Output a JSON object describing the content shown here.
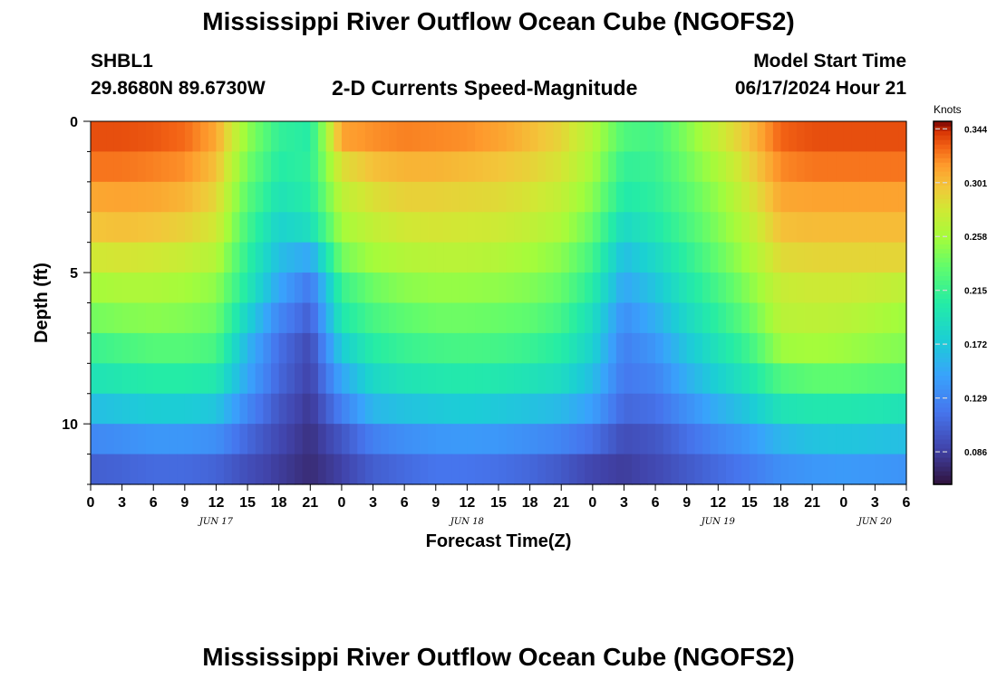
{
  "header": {
    "title": "Mississippi River Outflow Ocean Cube (NGOFS2)",
    "station_id": "SHBL1",
    "station_coords": "29.8680N  89.6730W",
    "subtitle": "2-D Currents Speed-Magnitude",
    "model_start_label": "Model Start Time",
    "model_start_value": "06/17/2024 Hour 21"
  },
  "footer": {
    "title": "Mississippi River Outflow Ocean Cube (NGOFS2)"
  },
  "chart_data": {
    "type": "heatmap",
    "ylabel": "Depth (ft)",
    "xlabel": "Forecast Time(Z)",
    "colorbar_label": "Knots",
    "colorbar_ticks": [
      0.086,
      0.129,
      0.172,
      0.215,
      0.258,
      0.301,
      0.344
    ],
    "value_range": [
      0.06,
      0.35
    ],
    "y_range": [
      0,
      12
    ],
    "y_ticks": [
      0,
      5,
      10
    ],
    "x_range_hours": [
      0,
      78
    ],
    "x_tick_labels": [
      "0",
      "3",
      "6",
      "9",
      "12",
      "15",
      "18",
      "21",
      "0",
      "3",
      "6",
      "9",
      "12",
      "15",
      "18",
      "21",
      "0",
      "3",
      "6",
      "9",
      "12",
      "15",
      "18",
      "21",
      "0",
      "3",
      "6"
    ],
    "date_labels": [
      {
        "text": "JUN 17",
        "hour": 12
      },
      {
        "text": "JUN 18",
        "hour": 36
      },
      {
        "text": "JUN 19",
        "hour": 60
      },
      {
        "text": "JUN 20",
        "hour": 75
      }
    ],
    "depth_levels_ft": [
      0.5,
      1.5,
      2.5,
      3.5,
      4.5,
      5.5,
      6.5,
      7.5,
      8.5,
      9.5,
      10.5,
      11.5
    ],
    "times_hours": [
      0,
      3,
      6,
      9,
      12,
      15,
      18,
      21,
      24,
      27,
      30,
      33,
      36,
      39,
      42,
      45,
      48,
      51,
      54,
      57,
      60,
      63,
      66,
      69,
      72,
      75,
      78
    ],
    "speed_knots": [
      [
        0.335,
        0.335,
        0.333,
        0.328,
        0.31,
        0.25,
        0.212,
        0.205,
        0.312,
        0.318,
        0.322,
        0.32,
        0.318,
        0.312,
        0.302,
        0.29,
        0.265,
        0.225,
        0.22,
        0.245,
        0.275,
        0.3,
        0.33,
        0.335,
        0.335,
        0.335,
        0.335
      ],
      [
        0.325,
        0.325,
        0.322,
        0.318,
        0.3,
        0.24,
        0.205,
        0.21,
        0.285,
        0.3,
        0.305,
        0.305,
        0.302,
        0.298,
        0.292,
        0.282,
        0.258,
        0.212,
        0.215,
        0.238,
        0.262,
        0.29,
        0.32,
        0.325,
        0.325,
        0.325,
        0.325
      ],
      [
        0.31,
        0.312,
        0.31,
        0.305,
        0.29,
        0.23,
        0.195,
        0.205,
        0.27,
        0.285,
        0.292,
        0.292,
        0.29,
        0.288,
        0.282,
        0.272,
        0.248,
        0.202,
        0.21,
        0.23,
        0.252,
        0.28,
        0.31,
        0.312,
        0.312,
        0.312,
        0.312
      ],
      [
        0.298,
        0.3,
        0.298,
        0.292,
        0.28,
        0.22,
        0.18,
        0.19,
        0.258,
        0.272,
        0.28,
        0.282,
        0.28,
        0.278,
        0.272,
        0.262,
        0.235,
        0.185,
        0.2,
        0.222,
        0.245,
        0.27,
        0.3,
        0.302,
        0.302,
        0.302,
        0.302
      ],
      [
        0.28,
        0.282,
        0.28,
        0.275,
        0.265,
        0.21,
        0.165,
        0.15,
        0.24,
        0.258,
        0.265,
        0.268,
        0.268,
        0.265,
        0.258,
        0.248,
        0.22,
        0.165,
        0.185,
        0.21,
        0.235,
        0.26,
        0.288,
        0.29,
        0.29,
        0.29,
        0.29
      ],
      [
        0.258,
        0.262,
        0.262,
        0.258,
        0.25,
        0.2,
        0.15,
        0.12,
        0.215,
        0.238,
        0.248,
        0.252,
        0.252,
        0.25,
        0.245,
        0.235,
        0.205,
        0.15,
        0.17,
        0.198,
        0.222,
        0.248,
        0.275,
        0.278,
        0.278,
        0.275,
        0.27
      ],
      [
        0.24,
        0.245,
        0.248,
        0.245,
        0.238,
        0.18,
        0.13,
        0.105,
        0.2,
        0.222,
        0.232,
        0.238,
        0.238,
        0.236,
        0.232,
        0.22,
        0.19,
        0.135,
        0.155,
        0.185,
        0.21,
        0.235,
        0.268,
        0.27,
        0.268,
        0.262,
        0.255
      ],
      [
        0.215,
        0.222,
        0.228,
        0.228,
        0.222,
        0.16,
        0.115,
        0.092,
        0.175,
        0.205,
        0.215,
        0.22,
        0.222,
        0.22,
        0.215,
        0.205,
        0.18,
        0.125,
        0.14,
        0.17,
        0.195,
        0.218,
        0.255,
        0.258,
        0.255,
        0.25,
        0.245
      ],
      [
        0.195,
        0.2,
        0.205,
        0.205,
        0.2,
        0.15,
        0.11,
        0.088,
        0.15,
        0.185,
        0.195,
        0.2,
        0.202,
        0.2,
        0.195,
        0.188,
        0.165,
        0.12,
        0.128,
        0.155,
        0.178,
        0.198,
        0.225,
        0.232,
        0.232,
        0.228,
        0.225
      ],
      [
        0.165,
        0.17,
        0.175,
        0.175,
        0.17,
        0.13,
        0.1,
        0.082,
        0.125,
        0.16,
        0.168,
        0.172,
        0.175,
        0.172,
        0.168,
        0.162,
        0.145,
        0.11,
        0.115,
        0.135,
        0.155,
        0.172,
        0.195,
        0.2,
        0.2,
        0.198,
        0.195
      ],
      [
        0.13,
        0.135,
        0.14,
        0.14,
        0.135,
        0.11,
        0.092,
        0.078,
        0.1,
        0.125,
        0.135,
        0.14,
        0.142,
        0.14,
        0.135,
        0.128,
        0.115,
        0.095,
        0.1,
        0.115,
        0.13,
        0.142,
        0.16,
        0.168,
        0.17,
        0.168,
        0.165
      ],
      [
        0.105,
        0.108,
        0.112,
        0.112,
        0.108,
        0.095,
        0.085,
        0.075,
        0.088,
        0.105,
        0.112,
        0.118,
        0.118,
        0.115,
        0.11,
        0.102,
        0.09,
        0.085,
        0.092,
        0.102,
        0.112,
        0.122,
        0.135,
        0.14,
        0.142,
        0.14,
        0.138
      ]
    ]
  }
}
